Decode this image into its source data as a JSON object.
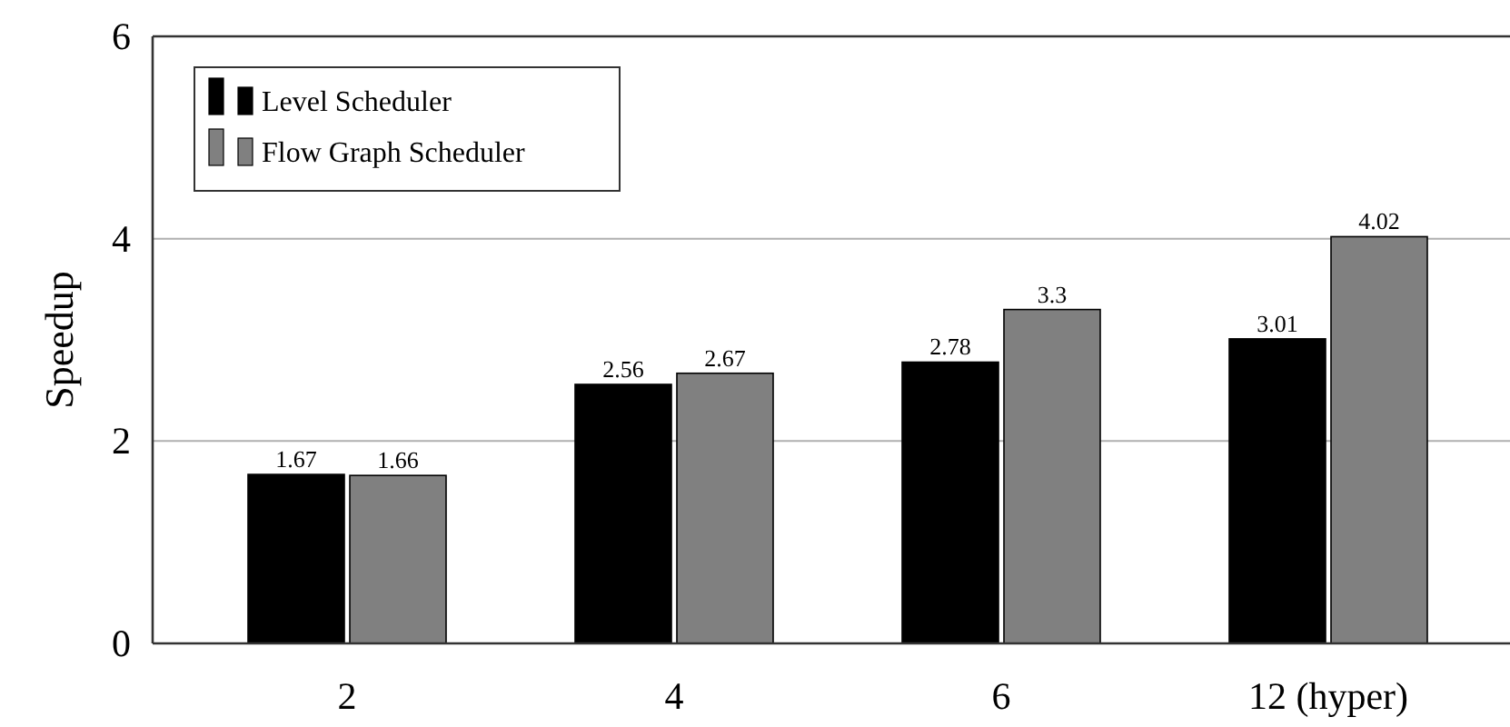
{
  "chart_data": {
    "type": "bar",
    "ylabel": "Speedup",
    "categories": [
      "2",
      "4",
      "6",
      "12 (hyper)"
    ],
    "series": [
      {
        "name": "Level Scheduler",
        "color": "#000000",
        "values": [
          1.67,
          2.56,
          2.78,
          3.01
        ]
      },
      {
        "name": "Flow Graph Scheduler",
        "color": "#808080",
        "values": [
          1.66,
          2.67,
          3.3,
          4.02
        ]
      }
    ],
    "ylim": [
      0,
      6
    ],
    "yticks": [
      0,
      2,
      4,
      6
    ],
    "grid": "y",
    "legend": "top left",
    "data_labels": true
  }
}
